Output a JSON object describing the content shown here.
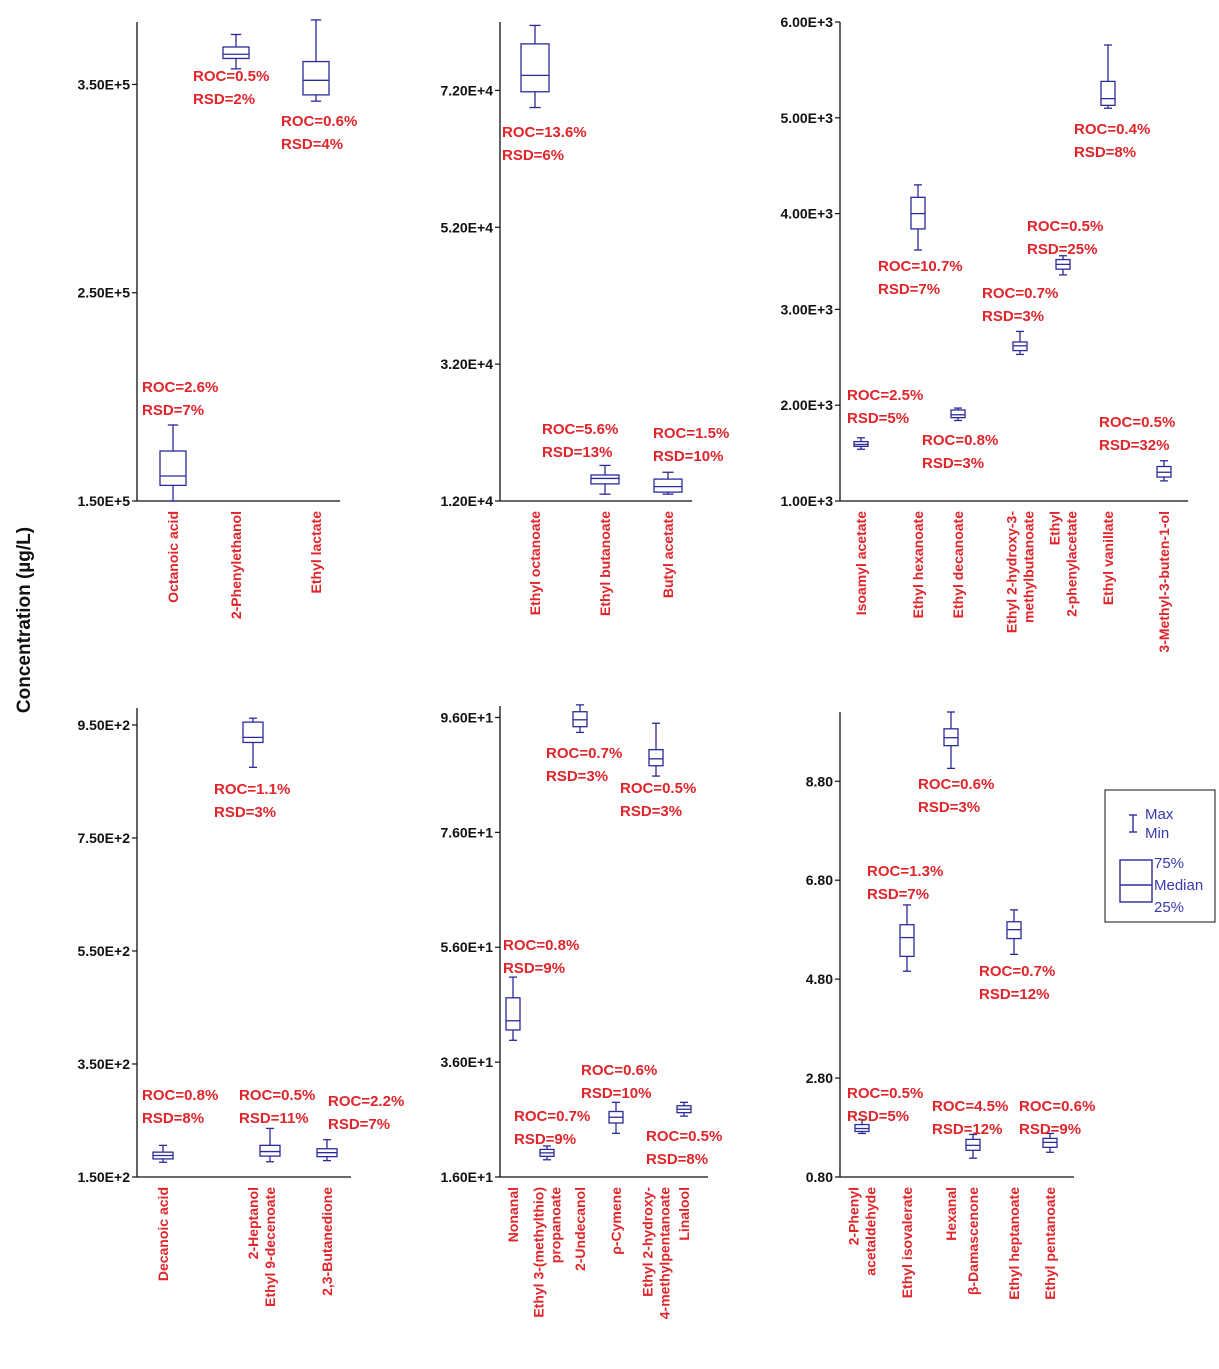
{
  "ylabel": "Concentration (µg/L)",
  "colors": {
    "box": "#2b2b9a",
    "annotation": "#e0252b",
    "axis": "#111111"
  },
  "legend": {
    "whisker_max": "Max",
    "whisker_min": "Min",
    "q3": "75%",
    "median": "Median",
    "q1": "25%"
  },
  "chart_data": [
    {
      "type": "box",
      "ticks": [
        150000,
        250000,
        350000
      ],
      "tick_labels": [
        "1.50E+5",
        "2.50E+5",
        "3.50E+5"
      ],
      "ylim": [
        150000,
        380000
      ],
      "categories": [
        {
          "name": "Octanoic acid",
          "min": 150000,
          "q1": 157500,
          "median": 162000,
          "q3": 174000,
          "max": 186500,
          "roc": "ROC=2.6%",
          "rsd": "RSD=7%"
        },
        {
          "name": "2-Phenylethanol",
          "min": 357500,
          "q1": 362500,
          "median": 364500,
          "q3": 368000,
          "max": 374000,
          "roc": "ROC=0.5%",
          "rsd": "RSD=2%"
        },
        {
          "name": "Ethyl lactate",
          "min": 342000,
          "q1": 345000,
          "median": 352000,
          "q3": 361000,
          "max": 381000,
          "roc": "ROC=0.6%",
          "rsd": "RSD=4%"
        }
      ]
    },
    {
      "type": "box",
      "ticks": [
        12000,
        32000,
        52000,
        72000
      ],
      "tick_labels": [
        "1.20E+4",
        "3.20E+4",
        "5.20E+4",
        "7.20E+4"
      ],
      "ylim": [
        12000,
        82000
      ],
      "categories": [
        {
          "name": "Ethyl octanoate",
          "min": 69500,
          "q1": 71800,
          "median": 74200,
          "q3": 78800,
          "max": 81500,
          "roc": "ROC=13.6%",
          "rsd": "RSD=6%"
        },
        {
          "name": "Ethyl butanoate",
          "min": 13000,
          "q1": 14500,
          "median": 15300,
          "q3": 15800,
          "max": 17200,
          "roc": "ROC=5.6%",
          "rsd": "RSD=13%"
        },
        {
          "name": "Butyl acetate",
          "min": 13000,
          "q1": 13300,
          "median": 14100,
          "q3": 15200,
          "max": 16200,
          "roc": "ROC=1.5%",
          "rsd": "RSD=10%"
        }
      ]
    },
    {
      "type": "box",
      "ticks": [
        1000,
        2000,
        3000,
        4000,
        5000,
        6000
      ],
      "tick_labels": [
        "1.00E+3",
        "2.00E+3",
        "3.00E+3",
        "4.00E+3",
        "5.00E+3",
        "6.00E+3"
      ],
      "ylim": [
        1000,
        6000
      ],
      "categories": [
        {
          "name": "Isoamyl acetate",
          "min": 1540,
          "q1": 1570,
          "median": 1590,
          "q3": 1620,
          "max": 1660,
          "roc": "ROC=2.5%",
          "rsd": "RSD=5%"
        },
        {
          "name": "Ethyl hexanoate",
          "min": 3620,
          "q1": 3840,
          "median": 4000,
          "q3": 4170,
          "max": 4300,
          "roc": "ROC=10.7%",
          "rsd": "RSD=7%"
        },
        {
          "name": "Ethyl decanoate",
          "min": 1840,
          "q1": 1870,
          "median": 1900,
          "q3": 1950,
          "max": 1970,
          "roc": "ROC=0.8%",
          "rsd": "RSD=3%"
        },
        {
          "name": "Ethyl 2-hydroxy-3-methylbutanoate",
          "lines": [
            "Ethyl 2-hydroxy-3-",
            "methylbutanoate"
          ],
          "min": 2530,
          "q1": 2570,
          "median": 2620,
          "q3": 2660,
          "max": 2770,
          "roc": "ROC=0.7%",
          "rsd": "RSD=3%"
        },
        {
          "name": "Ethyl 2-phenylacetate",
          "lines": [
            "Ethyl",
            "2-phenylacetate"
          ],
          "min": 3360,
          "q1": 3420,
          "median": 3470,
          "q3": 3520,
          "max": 3560,
          "roc": "ROC=0.5%",
          "rsd": "RSD=25%"
        },
        {
          "name": "Ethyl vanillate",
          "min": 5100,
          "q1": 5130,
          "median": 5200,
          "q3": 5380,
          "max": 5760,
          "roc": "ROC=0.4%",
          "rsd": "RSD=8%"
        },
        {
          "name": "3-Methyl-3-buten-1-ol",
          "min": 1210,
          "q1": 1250,
          "median": 1300,
          "q3": 1360,
          "max": 1420,
          "roc": "ROC=0.5%",
          "rsd": "RSD=32%"
        }
      ]
    },
    {
      "type": "box",
      "ticks": [
        150,
        350,
        550,
        750,
        950
      ],
      "tick_labels": [
        "1.50E+2",
        "3.50E+2",
        "5.50E+2",
        "7.50E+2",
        "9.50E+2"
      ],
      "ylim": [
        150,
        980
      ],
      "categories": [
        {
          "name": "Decanoic acid",
          "min": 176,
          "q1": 182,
          "median": 188,
          "q3": 194,
          "max": 206,
          "roc": "ROC=0.8%",
          "rsd": "RSD=8%"
        },
        {
          "name": "2-Heptanol",
          "min": 875,
          "q1": 919,
          "median": 928,
          "q3": 955,
          "max": 962,
          "roc": "ROC=1.1%",
          "rsd": "RSD=3%"
        },
        {
          "name": "Ethyl 9-decenoate",
          "min": 177,
          "q1": 187,
          "median": 195,
          "q3": 206,
          "max": 236,
          "roc": "ROC=0.5%",
          "rsd": "RSD=11%"
        },
        {
          "name": "2,3-Butanedione",
          "min": 179,
          "q1": 186,
          "median": 193,
          "q3": 200,
          "max": 216,
          "roc": "ROC=2.2%",
          "rsd": "RSD=7%"
        }
      ]
    },
    {
      "type": "box",
      "ticks": [
        16,
        36,
        56,
        76,
        96
      ],
      "tick_labels": [
        "1.60E+1",
        "3.60E+1",
        "5.60E+1",
        "7.60E+1",
        "9.60E+1"
      ],
      "ylim": [
        16,
        98
      ],
      "categories": [
        {
          "name": "Nonanal",
          "min": 39.8,
          "q1": 41.6,
          "median": 43.2,
          "q3": 47.2,
          "max": 50.8,
          "roc": "ROC=0.8%",
          "rsd": "RSD=9%"
        },
        {
          "name": "Ethyl 3-(methylthio) propanoate",
          "lines": [
            "Ethyl 3-(methylthio)",
            "propanoate"
          ],
          "min": 19.0,
          "q1": 19.6,
          "median": 20.2,
          "q3": 20.8,
          "max": 21.4,
          "roc": "ROC=0.7%",
          "rsd": "RSD=9%"
        },
        {
          "name": "2-Undecanol",
          "min": 93.4,
          "q1": 94.4,
          "median": 95.6,
          "q3": 97.0,
          "max": 98.2,
          "roc": "ROC=0.7%",
          "rsd": "RSD=3%"
        },
        {
          "name": "ρ-Cymene",
          "min": 23.6,
          "q1": 25.4,
          "median": 26.4,
          "q3": 27.4,
          "max": 29.0,
          "roc": "ROC=0.6%",
          "rsd": "RSD=10%"
        },
        {
          "name": "Ethyl 2-hydroxy-4-methylpentanoate",
          "lines": [
            "Ethyl 2-hydroxy-",
            "4-methylpentanoate"
          ],
          "min": 85.8,
          "q1": 87.6,
          "median": 88.8,
          "q3": 90.4,
          "max": 95.0,
          "roc": "ROC=0.5%",
          "rsd": "RSD=3%"
        },
        {
          "name": "Linalool",
          "min": 26.6,
          "q1": 27.2,
          "median": 27.8,
          "q3": 28.4,
          "max": 29.0,
          "roc": "ROC=0.5%",
          "rsd": "RSD=8%"
        }
      ]
    },
    {
      "type": "box",
      "ticks": [
        0.8,
        2.8,
        4.8,
        6.8,
        8.8
      ],
      "tick_labels": [
        "0.80",
        "2.80",
        "4.80",
        "6.80",
        "8.80"
      ],
      "ylim": [
        0.8,
        10.2
      ],
      "categories": [
        {
          "name": "2-Phenyl acetaldehyde",
          "lines": [
            "2-Phenyl",
            "acetaldehyde"
          ],
          "min": 1.68,
          "q1": 1.72,
          "median": 1.78,
          "q3": 1.86,
          "max": 1.96,
          "roc": "ROC=0.5%",
          "rsd": "RSD=5%"
        },
        {
          "name": "Ethyl isovalerate",
          "min": 4.96,
          "q1": 5.26,
          "median": 5.64,
          "q3": 5.9,
          "max": 6.3,
          "roc": "ROC=1.3%",
          "rsd": "RSD=7%"
        },
        {
          "name": "Hexanal",
          "min": 9.06,
          "q1": 9.52,
          "median": 9.68,
          "q3": 9.86,
          "max": 10.2,
          "roc": "ROC=0.6%",
          "rsd": "RSD=3%"
        },
        {
          "name": "β-Damascenone",
          "min": 1.18,
          "q1": 1.34,
          "median": 1.44,
          "q3": 1.56,
          "max": 1.66,
          "roc": "ROC=4.5%",
          "rsd": "RSD=12%"
        },
        {
          "name": "Ethyl heptanoate",
          "min": 5.3,
          "q1": 5.62,
          "median": 5.8,
          "q3": 5.96,
          "max": 6.2,
          "roc": "ROC=0.7%",
          "rsd": "RSD=12%"
        },
        {
          "name": "Ethyl pentanoate",
          "min": 1.3,
          "q1": 1.4,
          "median": 1.5,
          "q3": 1.58,
          "max": 1.68,
          "roc": "ROC=0.6%",
          "rsd": "RSD=9%"
        }
      ]
    }
  ]
}
